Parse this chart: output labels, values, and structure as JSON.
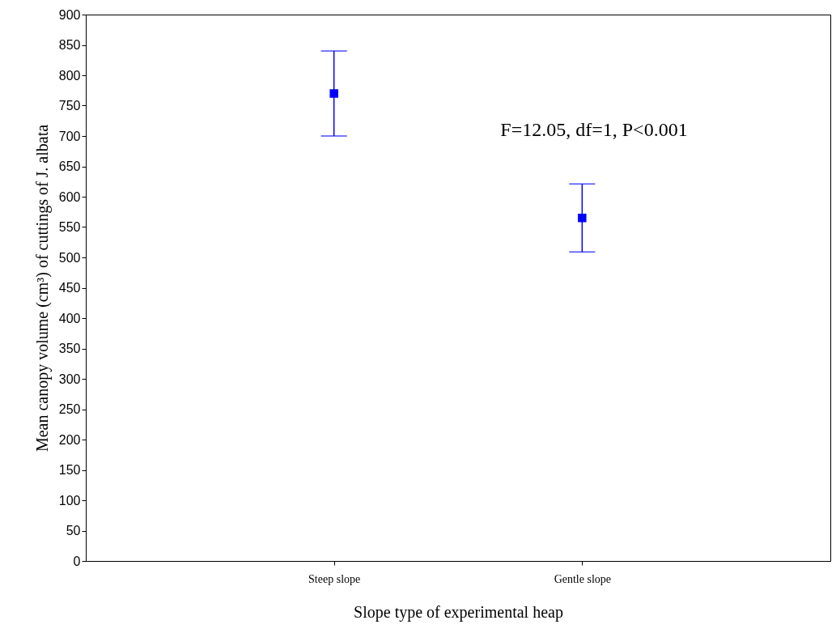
{
  "chart_data": {
    "type": "scatter",
    "xlabel": "Slope type of experimental heap",
    "ylabel": "Mean canopy volume (cm³) of cuttings of J. albata",
    "categories": [
      "Steep slope",
      "Gentle slope"
    ],
    "series": [
      {
        "color": "#0000ff",
        "values": [
          770,
          565
        ],
        "errors": [
          70,
          56
        ]
      }
    ],
    "ylim": [
      0,
      900
    ],
    "yticks": [
      0,
      50,
      100,
      150,
      200,
      250,
      300,
      350,
      400,
      450,
      500,
      550,
      600,
      650,
      700,
      750,
      800,
      850,
      900
    ],
    "marker": "square",
    "grid": false,
    "annotations": [
      "F=12.05, df=1, P<0.001"
    ]
  }
}
